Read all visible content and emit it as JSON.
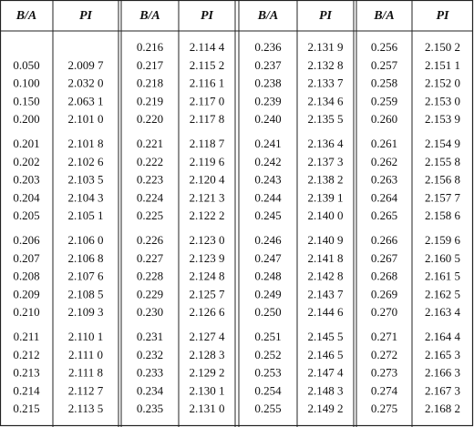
{
  "table": {
    "header": [
      "B/A",
      "PI",
      "B/A",
      "PI",
      "B/A",
      "PI",
      "B/A",
      "PI"
    ],
    "rows": [
      [
        null,
        null,
        "0.216",
        "2.114 4",
        "0.236",
        "2.131 9",
        "0.256",
        "2.150 2"
      ],
      [
        "0.050",
        "2.009 7",
        "0.217",
        "2.115 2",
        "0.237",
        "2.132 8",
        "0.257",
        "2.151 1"
      ],
      [
        "0.100",
        "2.032 0",
        "0.218",
        "2.116 1",
        "0.238",
        "2.133 7",
        "0.258",
        "2.152 0"
      ],
      [
        "0.150",
        "2.063 1",
        "0.219",
        "2.117 0",
        "0.239",
        "2.134 6",
        "0.259",
        "2.153 0"
      ],
      [
        "0.200",
        "2.101 0",
        "0.220",
        "2.117 8",
        "0.240",
        "2.135 5",
        "0.260",
        "2.153 9"
      ],
      [
        "0.201",
        "2.101 8",
        "0.221",
        "2.118 7",
        "0.241",
        "2.136 4",
        "0.261",
        "2.154 9"
      ],
      [
        "0.202",
        "2.102 6",
        "0.222",
        "2.119 6",
        "0.242",
        "2.137 3",
        "0.262",
        "2.155 8"
      ],
      [
        "0.203",
        "2.103 5",
        "0.223",
        "2.120 4",
        "0.243",
        "2.138 2",
        "0.263",
        "2.156 8"
      ],
      [
        "0.204",
        "2.104 3",
        "0.224",
        "2.121 3",
        "0.244",
        "2.139 1",
        "0.264",
        "2.157 7"
      ],
      [
        "0.205",
        "2.105 1",
        "0.225",
        "2.122 2",
        "0.245",
        "2.140 0",
        "0.265",
        "2.158 6"
      ],
      [
        "0.206",
        "2.106 0",
        "0.226",
        "2.123 0",
        "0.246",
        "2.140 9",
        "0.266",
        "2.159 6"
      ],
      [
        "0.207",
        "2.106 8",
        "0.227",
        "2.123 9",
        "0.247",
        "2.141 8",
        "0.267",
        "2.160 5"
      ],
      [
        "0.208",
        "2.107 6",
        "0.228",
        "2.124 8",
        "0.248",
        "2.142 8",
        "0.268",
        "2.161 5"
      ],
      [
        "0.209",
        "2.108 5",
        "0.229",
        "2.125 7",
        "0.249",
        "2.143 7",
        "0.269",
        "2.162 5"
      ],
      [
        "0.210",
        "2.109 3",
        "0.230",
        "2.126 6",
        "0.250",
        "2.144 6",
        "0.270",
        "2.163 4"
      ],
      [
        "0.211",
        "2.110 1",
        "0.231",
        "2.127 4",
        "0.251",
        "2.145 5",
        "0.271",
        "2.164 4"
      ],
      [
        "0.212",
        "2.111 0",
        "0.232",
        "2.128 3",
        "0.252",
        "2.146 5",
        "0.272",
        "2.165 3"
      ],
      [
        "0.213",
        "2.111 8",
        "0.233",
        "2.129 2",
        "0.253",
        "2.147 4",
        "0.273",
        "2.166 3"
      ],
      [
        "0.214",
        "2.112 7",
        "0.234",
        "2.130 1",
        "0.254",
        "2.148 3",
        "0.274",
        "2.167 3"
      ],
      [
        "0.215",
        "2.113 5",
        "0.235",
        "2.131 0",
        "0.255",
        "2.149 2",
        "0.275",
        "2.168 2"
      ]
    ]
  }
}
